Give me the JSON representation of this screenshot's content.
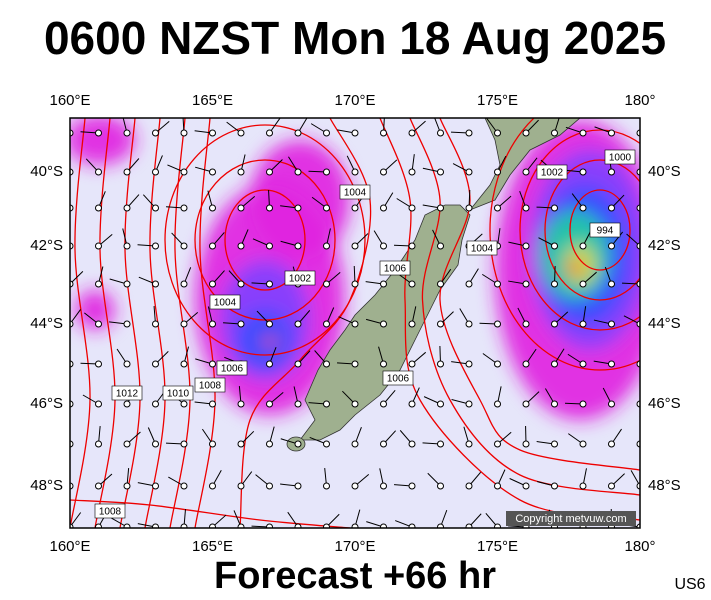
{
  "header": {
    "title": "0600 NZST Mon 18 Aug 2025"
  },
  "map": {
    "lon_labels": [
      "160°E",
      "165°E",
      "170°E",
      "175°E",
      "180°"
    ],
    "lat_labels": [
      "40°S",
      "42°S",
      "44°S",
      "46°S",
      "48°S"
    ],
    "isobar_labels": [
      "1000",
      "1002",
      "994",
      "1004",
      "1004",
      "1002",
      "1004",
      "1006",
      "1006",
      "1006",
      "1008",
      "1010",
      "1012",
      "1008"
    ],
    "copyright": "Copyright metvuw.com"
  },
  "footer": {
    "forecast": "Forecast +66 hr",
    "code": "US6"
  }
}
